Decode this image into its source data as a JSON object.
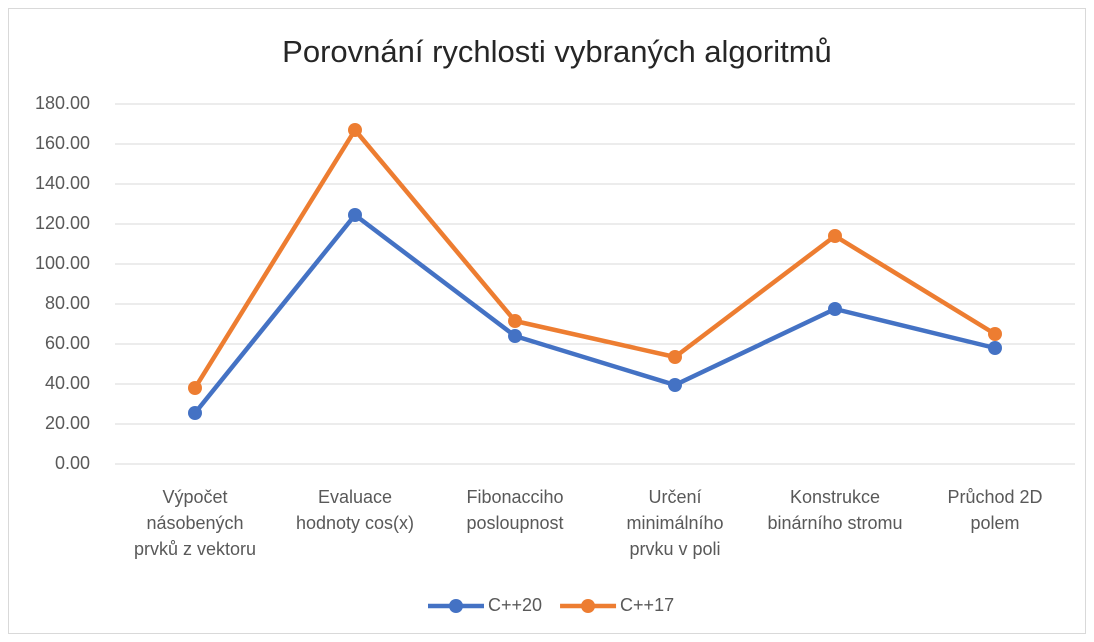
{
  "chart_data": {
    "type": "line",
    "title": "Porovnání rychlosti vybraných algoritmů",
    "categories": [
      "Výpočet násobených prvků z vektoru",
      "Evaluace hodnoty cos(x)",
      "Fibonacciho posloupnost",
      "Určení minimálního prvku v poli",
      "Konstrukce binárního stromu",
      "Průchod 2D polem"
    ],
    "series": [
      {
        "name": "C++20",
        "color": "#4472c4",
        "values": [
          25.5,
          124.5,
          64,
          39.5,
          77.5,
          58
        ]
      },
      {
        "name": "C++17",
        "color": "#ed7d31",
        "values": [
          38,
          167,
          71.5,
          53.5,
          114,
          65
        ]
      }
    ],
    "ylim": [
      0,
      180
    ],
    "yticks": [
      {
        "value": 0,
        "label": "0.00"
      },
      {
        "value": 20,
        "label": "20.00"
      },
      {
        "value": 40,
        "label": "40.00"
      },
      {
        "value": 60,
        "label": "60.00"
      },
      {
        "value": 80,
        "label": "80.00"
      },
      {
        "value": 100,
        "label": "100.00"
      },
      {
        "value": 120,
        "label": "120.00"
      },
      {
        "value": 140,
        "label": "140.00"
      },
      {
        "value": 160,
        "label": "160.00"
      },
      {
        "value": 180,
        "label": "180.00"
      }
    ],
    "grid": true,
    "legend": "bottom"
  }
}
